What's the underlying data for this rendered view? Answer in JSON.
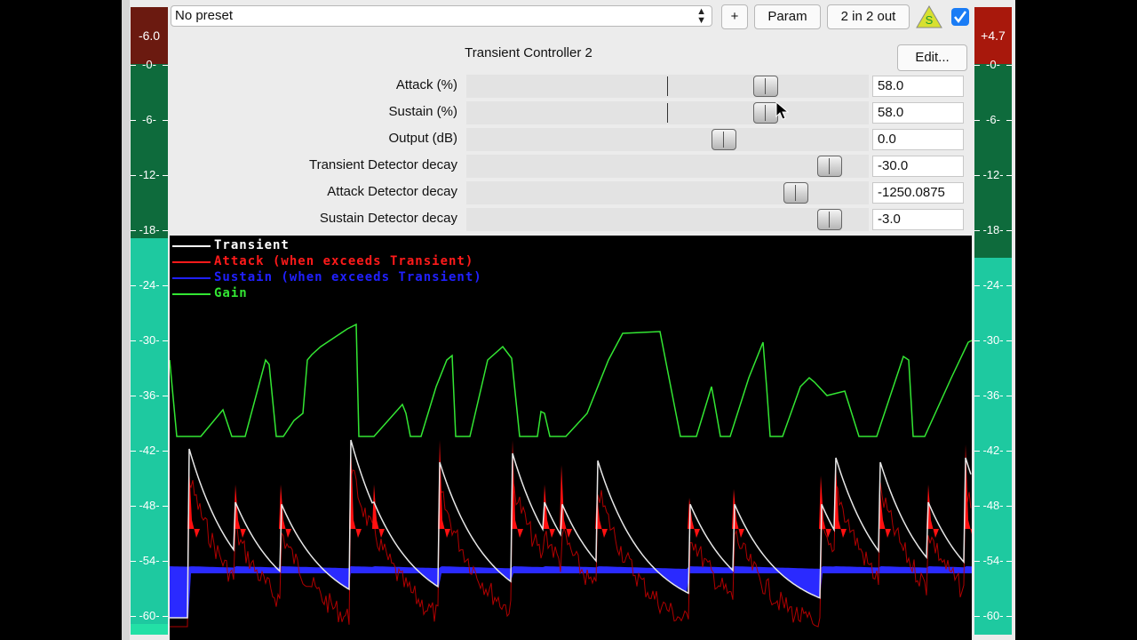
{
  "preset": {
    "value": "No preset"
  },
  "toolbar": {
    "add_label": "+",
    "param_label": "Param",
    "io_label": "2 in 2 out",
    "warn_icon_label": "S"
  },
  "plugin": {
    "name": "Transient Controller 2",
    "edit_label": "Edit..."
  },
  "params": [
    {
      "label": "Attack (%)",
      "value": "58.0",
      "position": 0.76,
      "centered": true
    },
    {
      "label": "Sustain (%)",
      "value": "58.0",
      "position": 0.76,
      "centered": true
    },
    {
      "label": "Output (dB)",
      "value": "0.0",
      "position": 0.65,
      "centered": false
    },
    {
      "label": "Transient Detector decay",
      "value": "-30.0",
      "position": 0.93,
      "centered": false
    },
    {
      "label": "Attack Detector decay",
      "value": "-1250.0875",
      "position": 0.84,
      "centered": false
    },
    {
      "label": "Sustain Detector decay",
      "value": "-3.0",
      "position": 0.93,
      "centered": false
    }
  ],
  "meters": {
    "left": {
      "peak": "-6.0",
      "peak_color": "#6b1a10"
    },
    "right": {
      "peak": "+4.7",
      "peak_color": "#a8180c"
    },
    "ticks": [
      "-0-",
      "-6-",
      "-12-",
      "-18-",
      "-24-",
      "-30-",
      "-36-",
      "-42-",
      "-48-",
      "-54-",
      "-60-"
    ]
  },
  "graph": {
    "legend": [
      {
        "label": "Transient",
        "color": "#ffffff"
      },
      {
        "label": "Attack (when exceeds Transient)",
        "color": "#ff1a1a"
      },
      {
        "label": "Sustain (when exceeds Transient)",
        "color": "#2020ff"
      },
      {
        "label": "Gain",
        "color": "#33e633"
      }
    ]
  }
}
